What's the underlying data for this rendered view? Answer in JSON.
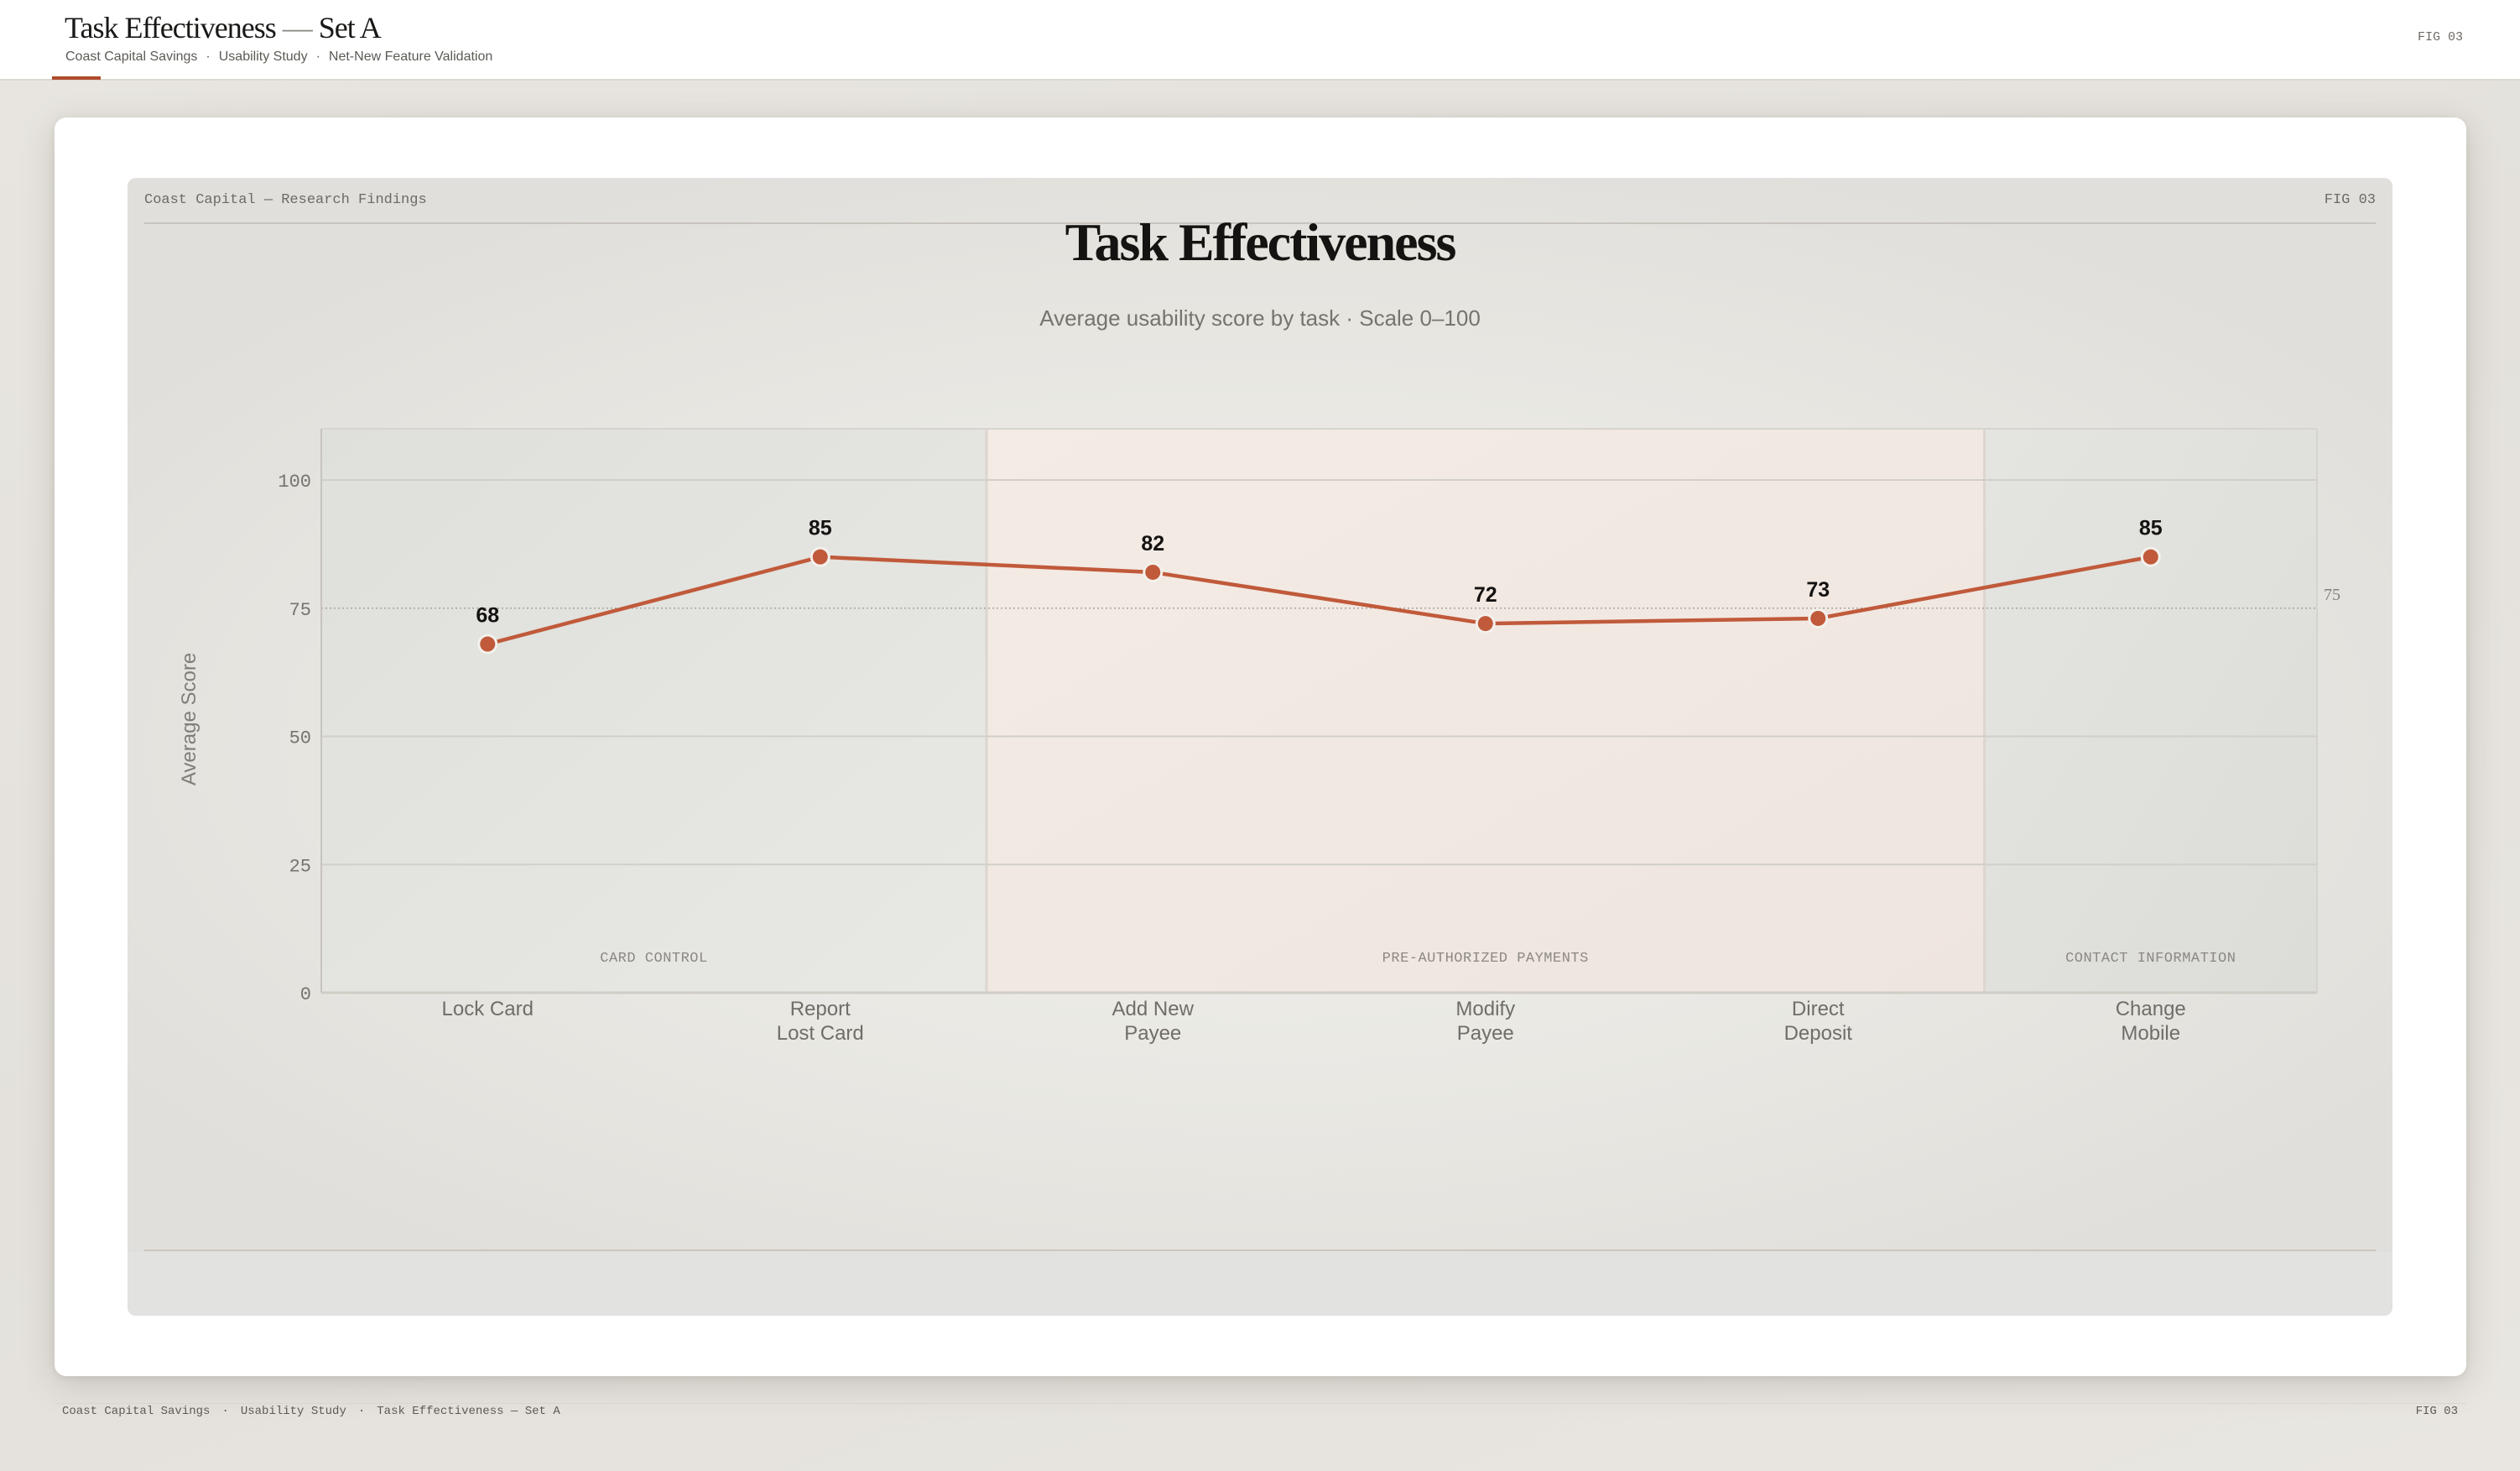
{
  "header": {
    "title_main": "Task Effectiveness",
    "title_dash": "—",
    "title_suffix": "Set A",
    "breadcrumbs": [
      "Coast Capital Savings",
      "Usability Study",
      "Net-New Feature Validation"
    ],
    "separator": "·",
    "fig_label": "FIG 03"
  },
  "panel": {
    "header_left": "Coast Capital — Research Findings",
    "header_right": "FIG 03"
  },
  "footer": {
    "items": [
      "Coast Capital Savings",
      "Usability Study",
      "Task Effectiveness — Set A"
    ],
    "separator": "·",
    "fig_label": "FIG 03"
  },
  "colors": {
    "accent": "#b04a2c",
    "line": "#c05a3a",
    "band_neutral": "#e3e3df",
    "band_warm": "#f3e9e3"
  },
  "chart_data": {
    "type": "line",
    "title": "Task Effectiveness",
    "subtitle": "Average usability score by task · Scale 0–100",
    "xlabel": "",
    "ylabel": "Average Score",
    "ylim": [
      0,
      110
    ],
    "yticks": [
      0,
      25,
      50,
      75,
      100
    ],
    "grid": true,
    "legend": "none",
    "categories": [
      "Lock Card",
      "Report Lost Card",
      "Add New Payee",
      "Modify Payee",
      "Direct Deposit",
      "Change Mobile"
    ],
    "category_lines": [
      [
        "Lock Card"
      ],
      [
        "Report",
        "Lost Card"
      ],
      [
        "Add New",
        "Payee"
      ],
      [
        "Modify",
        "Payee"
      ],
      [
        "Direct",
        "Deposit"
      ],
      [
        "Change",
        "Mobile"
      ]
    ],
    "series": [
      {
        "name": "Average Score",
        "values": [
          68,
          85,
          82,
          72,
          73,
          85
        ]
      }
    ],
    "reference_line": {
      "value": 75,
      "label": "75",
      "style": "dotted"
    },
    "groups": [
      {
        "label": "CARD CONTROL",
        "start": 0,
        "end": 1,
        "tone": "neutral"
      },
      {
        "label": "PRE-AUTHORIZED PAYMENTS",
        "start": 2,
        "end": 4,
        "tone": "warm"
      },
      {
        "label": "CONTACT INFORMATION",
        "start": 5,
        "end": 5,
        "tone": "neutral"
      }
    ]
  }
}
